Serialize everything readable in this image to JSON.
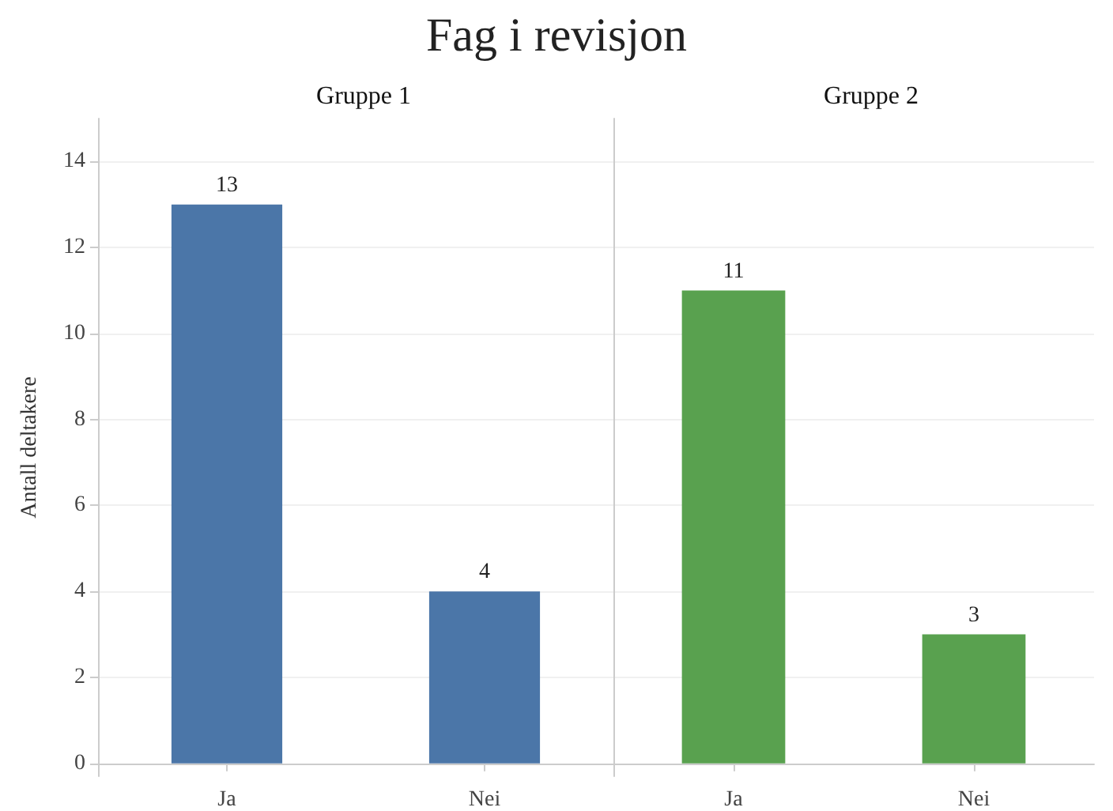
{
  "chart_data": [
    {
      "type": "bar",
      "title": "Fag i revisjon",
      "subtitle": "Gruppe 1",
      "ylabel": "Antall deltakere",
      "categories": [
        "Ja",
        "Nei"
      ],
      "values": [
        13,
        4
      ],
      "color": "#4b76a8",
      "ylim": [
        -0.3,
        15
      ],
      "yticks": [
        0,
        2,
        4,
        6,
        8,
        10,
        12,
        14
      ],
      "grid": "y",
      "data_labels": true
    },
    {
      "type": "bar",
      "subtitle": "Gruppe 2",
      "categories": [
        "Ja",
        "Nei"
      ],
      "values": [
        11,
        3
      ],
      "color": "#59a14f",
      "ylim": [
        -0.3,
        15
      ],
      "yticks": [
        0,
        2,
        4,
        6,
        8,
        10,
        12,
        14
      ],
      "grid": "y",
      "data_labels": true,
      "tick_labels": "x"
    }
  ]
}
